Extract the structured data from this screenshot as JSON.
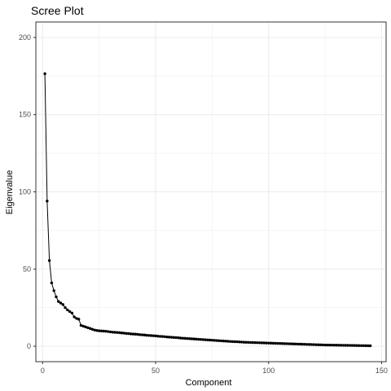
{
  "chart_data": {
    "type": "line",
    "title": "Scree Plot",
    "xlabel": "Component",
    "ylabel": "Eigenvalue",
    "xlim": [
      -3,
      152
    ],
    "ylim": [
      -10,
      210
    ],
    "x_ticks": [
      0,
      50,
      100,
      150
    ],
    "y_ticks": [
      0,
      50,
      100,
      150,
      200
    ],
    "x_tick_labels": [
      "0",
      "50",
      "100",
      "150"
    ],
    "y_tick_labels": [
      "0",
      "50",
      "100",
      "150",
      "200"
    ],
    "grid": true,
    "legend": "none",
    "markers": true,
    "series": [
      {
        "x": [
          1,
          2,
          3,
          4,
          5,
          6,
          7,
          8,
          9,
          10,
          11,
          12,
          13,
          14,
          15,
          16,
          17,
          18,
          19,
          20,
          21,
          22,
          23,
          24,
          25,
          26,
          27,
          28,
          29,
          30,
          31,
          32,
          33,
          34,
          35,
          36,
          37,
          38,
          39,
          40,
          41,
          42,
          43,
          44,
          45,
          46,
          47,
          48,
          49,
          50,
          51,
          52,
          53,
          54,
          55,
          56,
          57,
          58,
          59,
          60,
          61,
          62,
          63,
          64,
          65,
          66,
          67,
          68,
          69,
          70,
          71,
          72,
          73,
          74,
          75,
          76,
          77,
          78,
          79,
          80,
          81,
          82,
          83,
          84,
          85,
          86,
          87,
          88,
          89,
          90,
          91,
          92,
          93,
          94,
          95,
          96,
          97,
          98,
          99,
          100,
          101,
          102,
          103,
          104,
          105,
          106,
          107,
          108,
          109,
          110,
          111,
          112,
          113,
          114,
          115,
          116,
          117,
          118,
          119,
          120,
          121,
          122,
          123,
          124,
          125,
          126,
          127,
          128,
          129,
          130,
          131,
          132,
          133,
          134,
          135,
          136,
          137,
          138,
          139,
          140,
          141,
          142,
          143,
          144,
          145
        ],
        "values": [
          176.5,
          94.0,
          55.5,
          41.0,
          36.0,
          32.0,
          29.0,
          28.0,
          27.0,
          25.0,
          23.5,
          22.5,
          21.5,
          19.0,
          18.0,
          17.5,
          13.5,
          13.0,
          12.5,
          12.0,
          11.5,
          11.0,
          10.5,
          10.2,
          10.0,
          9.9,
          9.8,
          9.7,
          9.5,
          9.3,
          9.1,
          9.0,
          8.9,
          8.8,
          8.6,
          8.5,
          8.3,
          8.2,
          8.0,
          7.9,
          7.8,
          7.7,
          7.5,
          7.4,
          7.3,
          7.1,
          7.0,
          6.9,
          6.8,
          6.7,
          6.5,
          6.4,
          6.3,
          6.2,
          6.0,
          5.9,
          5.8,
          5.7,
          5.6,
          5.5,
          5.3,
          5.2,
          5.1,
          5.0,
          4.9,
          4.8,
          4.7,
          4.6,
          4.5,
          4.4,
          4.3,
          4.2,
          4.1,
          4.0,
          3.9,
          3.8,
          3.7,
          3.6,
          3.5,
          3.4,
          3.3,
          3.2,
          3.1,
          3.0,
          2.95,
          2.9,
          2.8,
          2.7,
          2.6,
          2.55,
          2.5,
          2.45,
          2.4,
          2.35,
          2.3,
          2.25,
          2.2,
          2.15,
          2.1,
          2.05,
          2.0,
          1.95,
          1.9,
          1.85,
          1.8,
          1.75,
          1.7,
          1.65,
          1.6,
          1.55,
          1.5,
          1.45,
          1.4,
          1.35,
          1.3,
          1.25,
          1.2,
          1.15,
          1.1,
          1.05,
          1.0,
          0.95,
          0.9,
          0.85,
          0.8,
          0.78,
          0.75,
          0.72,
          0.7,
          0.68,
          0.65,
          0.62,
          0.6,
          0.58,
          0.55,
          0.52,
          0.5,
          0.48,
          0.45,
          0.42,
          0.4,
          0.38,
          0.35,
          0.32,
          0.3
        ]
      }
    ]
  },
  "colors": {
    "background": "#ffffff",
    "grid": "#ebebeb",
    "panel_border": "#333333",
    "series": "#000000",
    "tick_label": "#4d4d4d"
  }
}
